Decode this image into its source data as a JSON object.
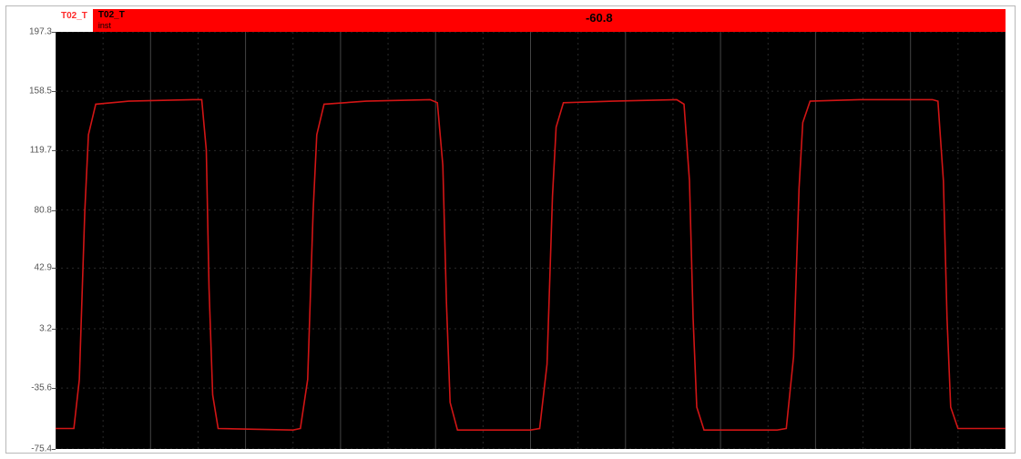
{
  "channel_tag": "T02_T",
  "banner": {
    "top_label": "T02_T",
    "sub_label": "inst",
    "readout": "-60.8"
  },
  "colors": {
    "bg": "#ffffff",
    "panel_border": "#b8b8b8",
    "channel_tag_text": "#ff2a2a",
    "banner_bg": "#ff0000",
    "banner_text": "#000000",
    "readout_text": "#000000",
    "plot_bg": "#000000",
    "grid_major": "#2a2a2a",
    "grid_solid": "#444444",
    "axis_text": "#555555",
    "trace": "#d11515"
  },
  "chart": {
    "type": "line",
    "ylim": [
      -75.4,
      197.3
    ],
    "yticks": [
      -75.4,
      -35.6,
      3.2,
      42.9,
      80.8,
      119.7,
      158.5,
      197.3
    ],
    "xlim": [
      0,
      1040
    ],
    "x_major_count": 10,
    "label_fontsize": 10,
    "trace_width": 1.6,
    "grid_dash": "2 4",
    "points": [
      [
        0,
        -62
      ],
      [
        20,
        -62
      ],
      [
        26,
        -30
      ],
      [
        32,
        80
      ],
      [
        36,
        130
      ],
      [
        44,
        150
      ],
      [
        80,
        152
      ],
      [
        150,
        153
      ],
      [
        160,
        153
      ],
      [
        165,
        120
      ],
      [
        168,
        30
      ],
      [
        172,
        -40
      ],
      [
        178,
        -62
      ],
      [
        260,
        -63
      ],
      [
        268,
        -62
      ],
      [
        276,
        -30
      ],
      [
        282,
        80
      ],
      [
        286,
        130
      ],
      [
        294,
        150
      ],
      [
        340,
        152
      ],
      [
        410,
        153
      ],
      [
        418,
        151
      ],
      [
        424,
        110
      ],
      [
        428,
        20
      ],
      [
        432,
        -45
      ],
      [
        440,
        -63
      ],
      [
        520,
        -63
      ],
      [
        530,
        -62
      ],
      [
        538,
        -20
      ],
      [
        544,
        90
      ],
      [
        548,
        135
      ],
      [
        556,
        151
      ],
      [
        610,
        152
      ],
      [
        680,
        153
      ],
      [
        688,
        150
      ],
      [
        694,
        100
      ],
      [
        698,
        10
      ],
      [
        702,
        -48
      ],
      [
        710,
        -63
      ],
      [
        790,
        -63
      ],
      [
        800,
        -62
      ],
      [
        808,
        -15
      ],
      [
        814,
        95
      ],
      [
        818,
        138
      ],
      [
        826,
        152
      ],
      [
        880,
        153
      ],
      [
        950,
        153
      ],
      [
        960,
        153
      ],
      [
        966,
        152
      ],
      [
        972,
        100
      ],
      [
        976,
        10
      ],
      [
        980,
        -48
      ],
      [
        988,
        -62
      ],
      [
        1040,
        -62
      ]
    ]
  }
}
